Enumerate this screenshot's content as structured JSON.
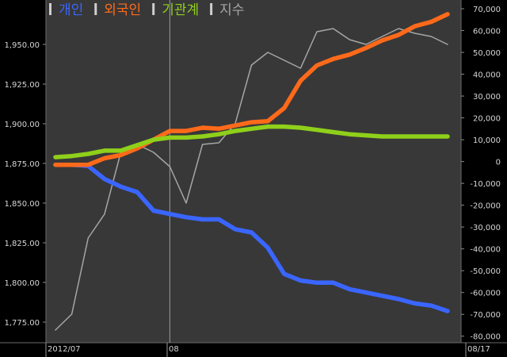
{
  "chart_data": {
    "type": "line",
    "title": "",
    "legend": {
      "placement": "top-left",
      "entries": [
        {
          "label": "개인",
          "color": "#3a66ff"
        },
        {
          "label": "외국인",
          "color": "#ff6a1a"
        },
        {
          "label": "기관계",
          "color": "#8fd01a"
        },
        {
          "label": "지수",
          "color": "#a6a6a6"
        }
      ]
    },
    "left_axis": {
      "ylim": [
        1762,
        1978
      ],
      "ticks": [
        "1,950.00",
        "1,925.00",
        "1,900.00",
        "1,875.00",
        "1,850.00",
        "1,825.00",
        "1,800.00",
        "1,775.00"
      ],
      "tick_values": [
        1950,
        1925,
        1900,
        1875,
        1850,
        1825,
        1800,
        1775
      ]
    },
    "right_axis": {
      "ylim": [
        -83000,
        74000
      ],
      "ticks": [
        "70,000",
        "60,000",
        "50,000",
        "40,000",
        "30,000",
        "20,000",
        "10,000",
        "0",
        "-10,000",
        "-20,000",
        "-30,000",
        "-40,000",
        "-50,000",
        "-60,000",
        "-70,000",
        "-80,000"
      ],
      "tick_values": [
        70000,
        60000,
        50000,
        40000,
        30000,
        20000,
        10000,
        0,
        -10000,
        -20000,
        -30000,
        -40000,
        -50000,
        -60000,
        -70000,
        -80000
      ]
    },
    "x_labels": [
      {
        "label": "2012/07",
        "index": 0
      },
      {
        "label": "08",
        "index": 7
      },
      {
        "label": "08/17",
        "index": 24
      }
    ],
    "marker_index": 7,
    "x_count": 25,
    "grid": false,
    "series": [
      {
        "name": "개인",
        "axis": "right",
        "color": "#3a66ff",
        "values": [
          -1500,
          -1500,
          -2000,
          -8000,
          -11500,
          -14000,
          -22500,
          -24000,
          -25500,
          -26500,
          -26500,
          -31000,
          -32500,
          -39500,
          -51500,
          -54500,
          -55500,
          -55500,
          -58500,
          -60000,
          -61500,
          -63000,
          -65000,
          -66000,
          -68500
        ]
      },
      {
        "name": "외국인",
        "axis": "right",
        "color": "#ff6a1a",
        "values": [
          -1500,
          -1500,
          -1500,
          1500,
          3000,
          6000,
          10000,
          14000,
          14000,
          15500,
          15000,
          16500,
          18000,
          18500,
          24500,
          37000,
          44000,
          47000,
          49000,
          52000,
          55500,
          58000,
          62000,
          64000,
          67500
        ]
      },
      {
        "name": "기관계",
        "axis": "right",
        "color": "#8fd01a",
        "values": [
          2000,
          2500,
          3500,
          5000,
          5000,
          7500,
          10000,
          11000,
          11000,
          11500,
          12500,
          14000,
          15000,
          16000,
          16000,
          15500,
          14500,
          13500,
          12500,
          12000,
          11500,
          11500,
          11500,
          11500,
          11500
        ]
      },
      {
        "name": "지수",
        "axis": "left",
        "color": "#a6a6a6",
        "values": [
          1770,
          1780,
          1828,
          1843,
          1882,
          1887,
          1882,
          1873,
          1850,
          1887,
          1888,
          1900,
          1937,
          1945,
          1940,
          1935,
          1958,
          1960,
          1953,
          1950,
          1955,
          1960,
          1957,
          1955,
          1950
        ]
      }
    ]
  }
}
